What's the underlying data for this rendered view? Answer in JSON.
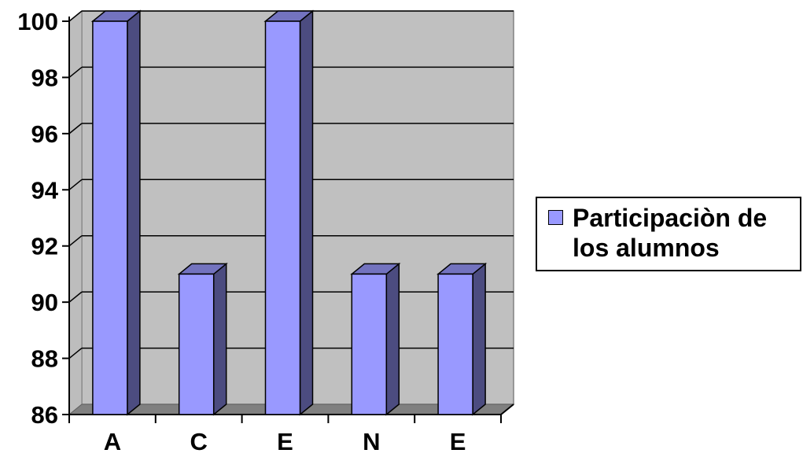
{
  "chart_data": {
    "type": "bar",
    "categories": [
      "A",
      "C",
      "E",
      "N",
      "E"
    ],
    "series": [
      {
        "name": "Participaciòn de los alumnos",
        "values": [
          100,
          91,
          100,
          91,
          91
        ],
        "color": "#9999ff"
      }
    ],
    "ylim": [
      86,
      100
    ],
    "yticks": [
      "86",
      "88",
      "90",
      "92",
      "94",
      "96",
      "98",
      "100"
    ],
    "grid": true,
    "plot_background": "#c0c0c0",
    "legend_position": "right",
    "style": "3d-column"
  },
  "legend": {
    "label": "Participaciòn de los alumnos"
  }
}
